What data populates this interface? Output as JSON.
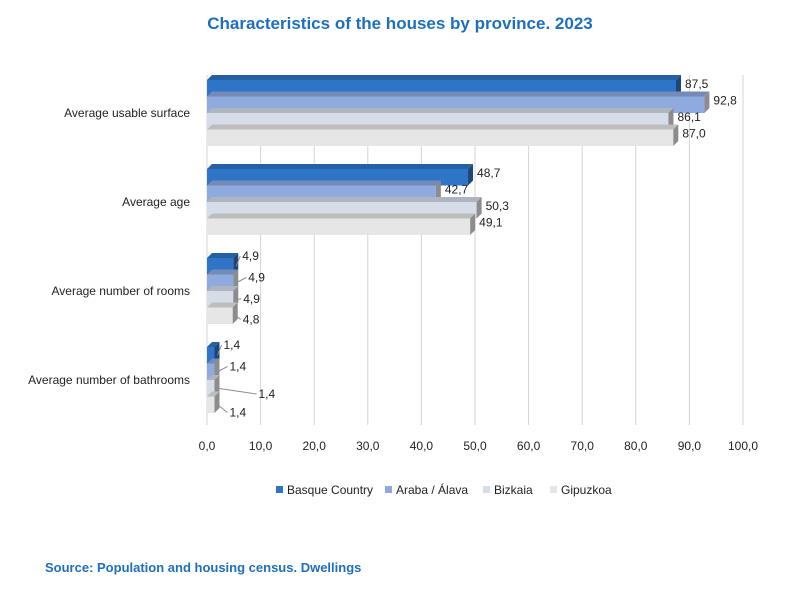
{
  "chart_data": {
    "type": "bar",
    "orientation": "horizontal",
    "title": "Characteristics of the houses by province. 2023",
    "categories": [
      "Average usable surface",
      "Average age",
      "Average number of rooms",
      "Average number of bathrooms"
    ],
    "series": [
      {
        "name": "Basque Country",
        "color": "#2e75c8",
        "values": [
          87.5,
          48.7,
          4.9,
          1.4
        ],
        "labels": [
          "87,5",
          "48,7",
          "4,9",
          "1,4"
        ]
      },
      {
        "name": "Araba / Álava",
        "color": "#8eaadf",
        "values": [
          92.8,
          42.7,
          4.9,
          1.4
        ],
        "labels": [
          "92,8",
          "42,7",
          "4,9",
          "1,4"
        ]
      },
      {
        "name": "Bizkaia",
        "color": "#d6dde8",
        "values": [
          86.1,
          50.3,
          4.9,
          1.4
        ],
        "labels": [
          "86,1",
          "50,3",
          "4,9",
          "1,4"
        ]
      },
      {
        "name": "Gipuzkoa",
        "color": "#e6e6e6",
        "values": [
          87.0,
          49.1,
          4.8,
          1.4
        ],
        "labels": [
          "87,0",
          "49,1",
          "4,8",
          "1,4"
        ]
      }
    ],
    "xlim": [
      0,
      100
    ],
    "ticks": [
      0,
      10,
      20,
      30,
      40,
      50,
      60,
      70,
      80,
      90,
      100
    ],
    "tick_labels": [
      "0,0",
      "10,0",
      "20,0",
      "30,0",
      "40,0",
      "50,0",
      "60,0",
      "70,0",
      "80,0",
      "90,0",
      "100,0"
    ],
    "grid": true,
    "legend_position": "bottom"
  },
  "source": "Source: Population and housing census. Dwellings"
}
